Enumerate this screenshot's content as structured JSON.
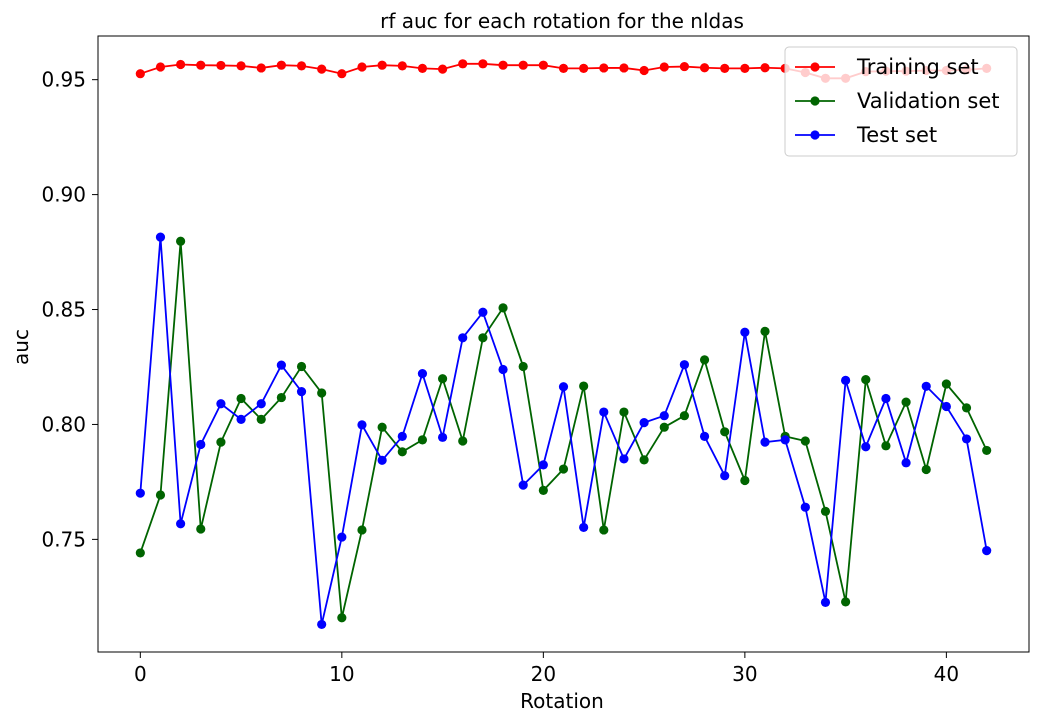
{
  "chart_data": {
    "type": "line",
    "title": "rf auc for each rotation for the nldas",
    "xlabel": "Rotation",
    "ylabel": "auc",
    "xlim": [
      -2.1,
      44.1
    ],
    "ylim": [
      0.701,
      0.969
    ],
    "xticks": [
      0,
      10,
      20,
      30,
      40
    ],
    "yticks": [
      0.75,
      0.8,
      0.85,
      0.9,
      0.95
    ],
    "ytick_labels": [
      "0.75",
      "0.80",
      "0.85",
      "0.90",
      "0.95"
    ],
    "grid": false,
    "legend_position": "top-right",
    "x": [
      0,
      1,
      2,
      3,
      4,
      5,
      6,
      7,
      8,
      9,
      10,
      11,
      12,
      13,
      14,
      15,
      16,
      17,
      18,
      19,
      20,
      21,
      22,
      23,
      24,
      25,
      26,
      27,
      28,
      29,
      30,
      31,
      32,
      33,
      34,
      35,
      36,
      37,
      38,
      39,
      40,
      41,
      42
    ],
    "series": [
      {
        "name": "Training set",
        "color": "#ff0000",
        "values": [
          0.9526,
          0.9555,
          0.9566,
          0.9563,
          0.9562,
          0.956,
          0.9551,
          0.9563,
          0.956,
          0.9546,
          0.9526,
          0.9555,
          0.9563,
          0.956,
          0.9549,
          0.9546,
          0.9569,
          0.9569,
          0.9563,
          0.9563,
          0.9563,
          0.9549,
          0.9549,
          0.9551,
          0.9551,
          0.954,
          0.9555,
          0.9557,
          0.9552,
          0.9549,
          0.9549,
          0.9552,
          0.9549,
          0.9531,
          0.9506,
          0.9506,
          0.9535,
          0.9537,
          0.9537,
          0.954,
          0.954,
          0.9543,
          0.9549
        ]
      },
      {
        "name": "Validation set",
        "color": "#006400",
        "values": [
          0.7441,
          0.7693,
          0.8797,
          0.7545,
          0.7923,
          0.8113,
          0.8022,
          0.8117,
          0.8252,
          0.8137,
          0.7159,
          0.7541,
          0.7988,
          0.7881,
          0.7933,
          0.8199,
          0.7928,
          0.8377,
          0.8507,
          0.8252,
          0.7713,
          0.7806,
          0.8167,
          0.7541,
          0.8054,
          0.7846,
          0.7988,
          0.8038,
          0.8281,
          0.7968,
          0.7756,
          0.8405,
          0.7948,
          0.7928,
          0.7622,
          0.7228,
          0.8195,
          0.7907,
          0.8097,
          0.7804,
          0.8176,
          0.8072,
          0.7887
        ]
      },
      {
        "name": "Test set",
        "color": "#0000ff",
        "values": [
          0.7701,
          0.8815,
          0.7568,
          0.7913,
          0.809,
          0.8022,
          0.809,
          0.8258,
          0.8143,
          0.713,
          0.751,
          0.7998,
          0.7844,
          0.7948,
          0.8221,
          0.7944,
          0.8377,
          0.8488,
          0.8239,
          0.7736,
          0.7824,
          0.8164,
          0.7552,
          0.8054,
          0.785,
          0.8008,
          0.8038,
          0.826,
          0.7948,
          0.7777,
          0.8401,
          0.7923,
          0.7933,
          0.764,
          0.7226,
          0.8192,
          0.7903,
          0.8113,
          0.7833,
          0.8166,
          0.8078,
          0.7937,
          0.7451
        ]
      }
    ]
  }
}
